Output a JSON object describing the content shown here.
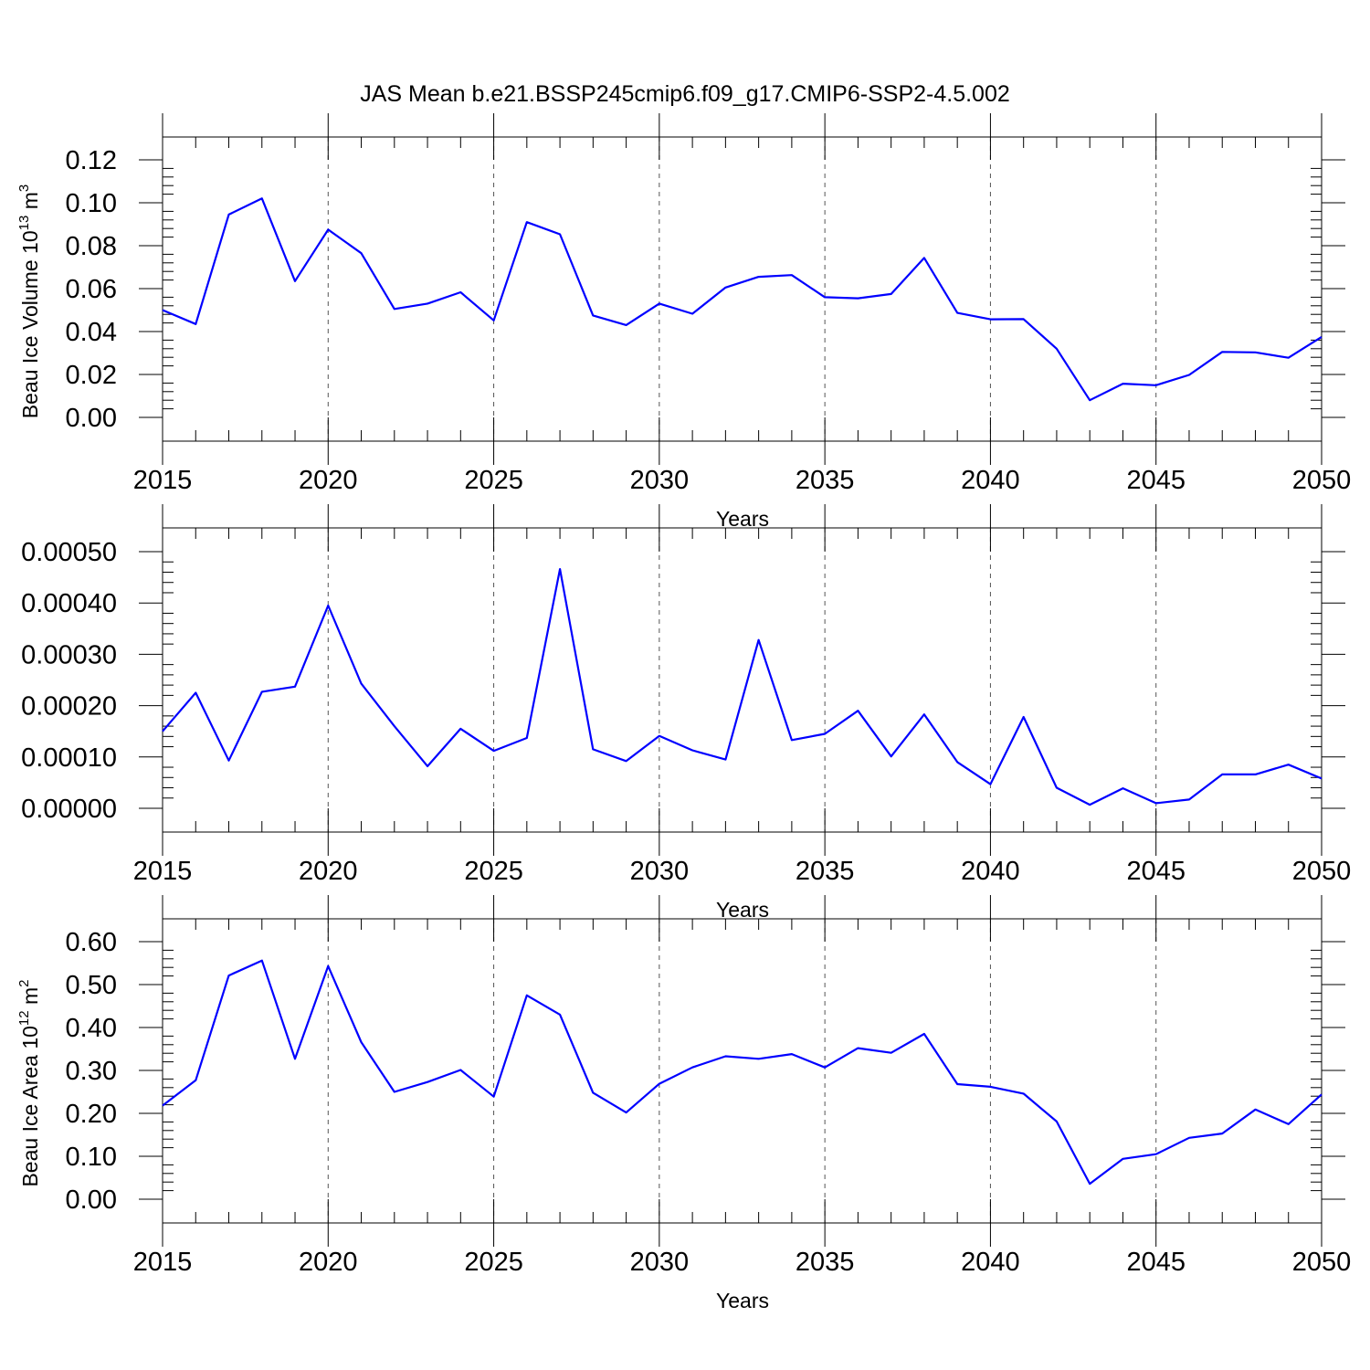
{
  "title": "JAS Mean b.e21.BSSP245cmip6.f09_g17.CMIP6-SSP2-4.5.002",
  "chart_data": [
    {
      "type": "line",
      "title": "",
      "xlabel": "Years",
      "ylabel": "Beau Ice Volume 10",
      "ylabel_sup": "13",
      "ylabel_unit": " m",
      "ylabel_unit_sup": "3",
      "xlim": [
        2015,
        2050
      ],
      "ylim": [
        0,
        0.12
      ],
      "y_tick_step": 0.02,
      "y_tick_labels": [
        "0.00",
        "0.02",
        "0.04",
        "0.06",
        "0.08",
        "0.10",
        "0.12"
      ],
      "x_tick_labels": [
        "2015",
        "2020",
        "2025",
        "2030",
        "2035",
        "2040",
        "2045",
        "2050"
      ],
      "grid_x": [
        2020,
        2025,
        2030,
        2035,
        2040,
        2045
      ],
      "color": "#0000ff",
      "x": [
        2015,
        2016,
        2017,
        2018,
        2019,
        2020,
        2021,
        2022,
        2023,
        2024,
        2025,
        2026,
        2027,
        2028,
        2029,
        2030,
        2031,
        2032,
        2033,
        2034,
        2035,
        2036,
        2037,
        2038,
        2039,
        2040,
        2041,
        2042,
        2043,
        2044,
        2045,
        2046,
        2047,
        2048,
        2049,
        2050
      ],
      "values": [
        0.05,
        0.0435,
        0.0945,
        0.102,
        0.0635,
        0.0875,
        0.0765,
        0.0505,
        0.053,
        0.0583,
        0.0452,
        0.091,
        0.0853,
        0.0475,
        0.043,
        0.053,
        0.0483,
        0.0605,
        0.0655,
        0.0663,
        0.056,
        0.0555,
        0.0575,
        0.0743,
        0.0487,
        0.0457,
        0.0458,
        0.032,
        0.008,
        0.0157,
        0.015,
        0.0198,
        0.0305,
        0.0303,
        0.0278,
        0.0375
      ]
    },
    {
      "type": "line",
      "title": "",
      "xlabel": "Years",
      "ylabel": "",
      "xlim": [
        2015,
        2050
      ],
      "ylim": [
        0,
        0.0005
      ],
      "y_tick_step": 0.0001,
      "y_tick_labels": [
        "0.00000",
        "0.00010",
        "0.00020",
        "0.00030",
        "0.00040",
        "0.00050"
      ],
      "x_tick_labels": [
        "2015",
        "2020",
        "2025",
        "2030",
        "2035",
        "2040",
        "2045",
        "2050"
      ],
      "grid_x": [
        2020,
        2025,
        2030,
        2035,
        2040,
        2045
      ],
      "color": "#0000ff",
      "x": [
        2015,
        2016,
        2017,
        2018,
        2019,
        2020,
        2021,
        2022,
        2023,
        2024,
        2025,
        2026,
        2027,
        2028,
        2029,
        2030,
        2031,
        2032,
        2033,
        2034,
        2035,
        2036,
        2037,
        2038,
        2039,
        2040,
        2041,
        2042,
        2043,
        2044,
        2045,
        2046,
        2047,
        2048,
        2049,
        2050
      ],
      "values": [
        0.00015,
        0.000225,
        9.3e-05,
        0.000227,
        0.000237,
        0.000395,
        0.000243,
        0.00016,
        8.2e-05,
        0.000155,
        0.000112,
        0.000137,
        0.000466,
        0.000115,
        9.2e-05,
        0.000141,
        0.000113,
        9.5e-05,
        0.000328,
        0.000133,
        0.000145,
        0.00019,
        0.000101,
        0.000183,
        9e-05,
        4.7e-05,
        0.000178,
        4e-05,
        7e-06,
        3.9e-05,
        1e-05,
        1.7e-05,
        6.6e-05,
        6.6e-05,
        8.5e-05,
        5.8e-05
      ]
    },
    {
      "type": "line",
      "title": "",
      "xlabel": "Years",
      "ylabel": "Beau Ice Area 10",
      "ylabel_sup": "12",
      "ylabel_unit": " m",
      "ylabel_unit_sup": "2",
      "xlim": [
        2015,
        2050
      ],
      "ylim": [
        0,
        0.6
      ],
      "y_tick_step": 0.1,
      "y_tick_labels": [
        "0.00",
        "0.10",
        "0.20",
        "0.30",
        "0.40",
        "0.50",
        "0.60"
      ],
      "x_tick_labels": [
        "2015",
        "2020",
        "2025",
        "2030",
        "2035",
        "2040",
        "2045",
        "2050"
      ],
      "grid_x": [
        2020,
        2025,
        2030,
        2035,
        2040,
        2045
      ],
      "color": "#0000ff",
      "x": [
        2015,
        2016,
        2017,
        2018,
        2019,
        2020,
        2021,
        2022,
        2023,
        2024,
        2025,
        2026,
        2027,
        2028,
        2029,
        2030,
        2031,
        2032,
        2033,
        2034,
        2035,
        2036,
        2037,
        2038,
        2039,
        2040,
        2041,
        2042,
        2043,
        2044,
        2045,
        2046,
        2047,
        2048,
        2049,
        2050
      ],
      "values": [
        0.218,
        0.277,
        0.521,
        0.556,
        0.327,
        0.543,
        0.366,
        0.25,
        0.273,
        0.301,
        0.239,
        0.475,
        0.43,
        0.248,
        0.202,
        0.269,
        0.307,
        0.333,
        0.327,
        0.338,
        0.307,
        0.352,
        0.341,
        0.385,
        0.268,
        0.262,
        0.246,
        0.181,
        0.036,
        0.094,
        0.105,
        0.143,
        0.153,
        0.209,
        0.175,
        0.244
      ]
    }
  ]
}
